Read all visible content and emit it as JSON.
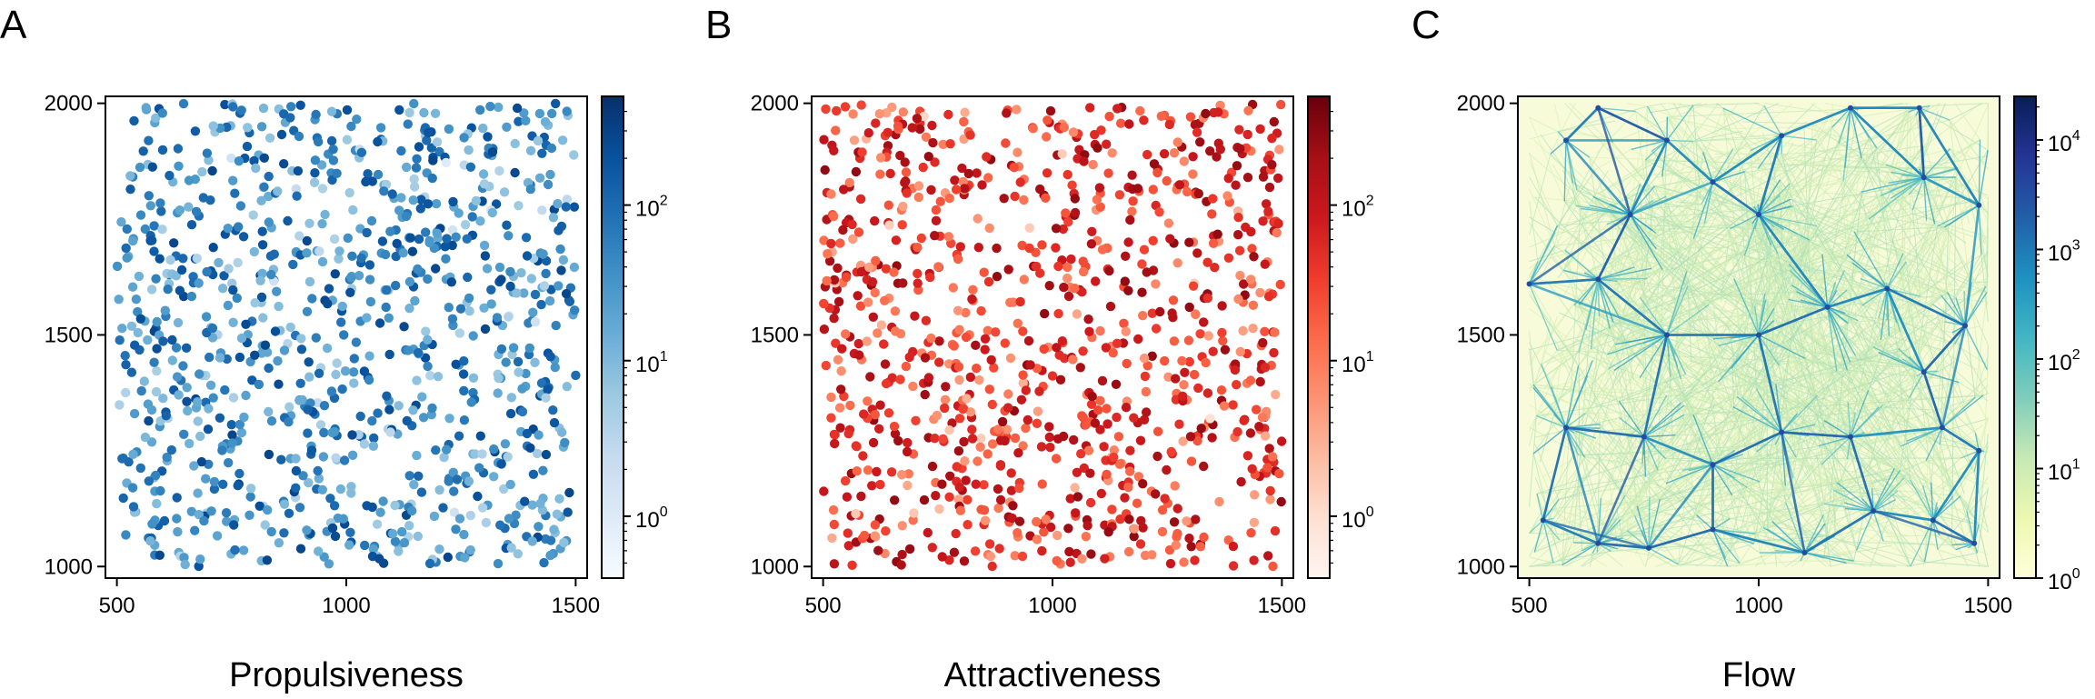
{
  "chart_data": [
    {
      "type": "scatter",
      "panel_label": "A",
      "title": "Propulsiveness",
      "xlim": [
        475,
        1525
      ],
      "ylim": [
        975,
        2015
      ],
      "x_ticks": [
        500,
        1000,
        1500
      ],
      "x_tick_labels": [
        "500",
        "1000",
        "1500"
      ],
      "y_ticks": [
        1000,
        1500,
        2000
      ],
      "y_tick_labels": [
        "1000",
        "1500",
        "2000"
      ],
      "point_count": 1000,
      "point_x_range": [
        500,
        1500
      ],
      "point_y_range": [
        1000,
        2000
      ],
      "colormap": "Blues",
      "colors": [
        "#f7fbff",
        "#deebf7",
        "#c6dbef",
        "#9ecae1",
        "#6baed6",
        "#4292c6",
        "#2171b5",
        "#08519c",
        "#08306b"
      ],
      "colorbar": {
        "scale": "log",
        "range": [
          0.4,
          500
        ],
        "ticks": [
          1,
          10,
          100
        ],
        "tick_bases": [
          "10",
          "10",
          "10"
        ],
        "tick_exponents": [
          "0",
          "1",
          "2"
        ]
      }
    },
    {
      "type": "scatter",
      "panel_label": "B",
      "title": "Attractiveness",
      "xlim": [
        475,
        1525
      ],
      "ylim": [
        975,
        2015
      ],
      "x_ticks": [
        500,
        1000,
        1500
      ],
      "x_tick_labels": [
        "500",
        "1000",
        "1500"
      ],
      "y_ticks": [
        1000,
        1500,
        2000
      ],
      "y_tick_labels": [
        "1000",
        "1500",
        "2000"
      ],
      "point_count": 1000,
      "point_x_range": [
        500,
        1500
      ],
      "point_y_range": [
        1000,
        2000
      ],
      "colormap": "Reds",
      "colors": [
        "#fff5f0",
        "#fee0d2",
        "#fcbba1",
        "#fc9272",
        "#fb6a4a",
        "#ef3b2c",
        "#cb181d",
        "#a50f15",
        "#67000d"
      ],
      "colorbar": {
        "scale": "log",
        "range": [
          0.4,
          500
        ],
        "ticks": [
          1,
          10,
          100
        ],
        "tick_bases": [
          "10",
          "10",
          "10"
        ],
        "tick_exponents": [
          "0",
          "1",
          "2"
        ]
      }
    },
    {
      "type": "network",
      "panel_label": "C",
      "title": "Flow",
      "xlim": [
        475,
        1525
      ],
      "ylim": [
        975,
        2015
      ],
      "x_ticks": [
        500,
        1000,
        1500
      ],
      "x_tick_labels": [
        "500",
        "1000",
        "1500"
      ],
      "y_ticks": [
        1000,
        1500,
        2000
      ],
      "y_tick_labels": [
        "1000",
        "1500",
        "2000"
      ],
      "colormap": "YlGnBu",
      "colors": [
        "#ffffd9",
        "#edf8b1",
        "#c7e9b4",
        "#7fcdbb",
        "#41b6c4",
        "#1d91c0",
        "#225ea8",
        "#253494",
        "#081d58"
      ],
      "hubs": [
        [
          580,
          1920
        ],
        [
          650,
          1990
        ],
        [
          720,
          1760
        ],
        [
          800,
          1920
        ],
        [
          900,
          1830
        ],
        [
          1000,
          1760
        ],
        [
          1050,
          1930
        ],
        [
          1200,
          1990
        ],
        [
          1350,
          1990
        ],
        [
          1360,
          1840
        ],
        [
          1480,
          1780
        ],
        [
          500,
          1610
        ],
        [
          650,
          1620
        ],
        [
          800,
          1500
        ],
        [
          1000,
          1500
        ],
        [
          1150,
          1560
        ],
        [
          1280,
          1600
        ],
        [
          1450,
          1520
        ],
        [
          1360,
          1420
        ],
        [
          1400,
          1300
        ],
        [
          1480,
          1250
        ],
        [
          1200,
          1280
        ],
        [
          1050,
          1290
        ],
        [
          900,
          1220
        ],
        [
          750,
          1280
        ],
        [
          580,
          1300
        ],
        [
          530,
          1100
        ],
        [
          650,
          1050
        ],
        [
          760,
          1040
        ],
        [
          900,
          1080
        ],
        [
          1100,
          1030
        ],
        [
          1250,
          1120
        ],
        [
          1380,
          1100
        ],
        [
          1470,
          1050
        ]
      ],
      "colorbar": {
        "scale": "log",
        "range": [
          1,
          25000
        ],
        "ticks": [
          1,
          10,
          100,
          1000,
          10000
        ],
        "tick_bases": [
          "10",
          "10",
          "10",
          "10",
          "10"
        ],
        "tick_exponents": [
          "0",
          "1",
          "2",
          "3",
          "4"
        ]
      }
    }
  ]
}
